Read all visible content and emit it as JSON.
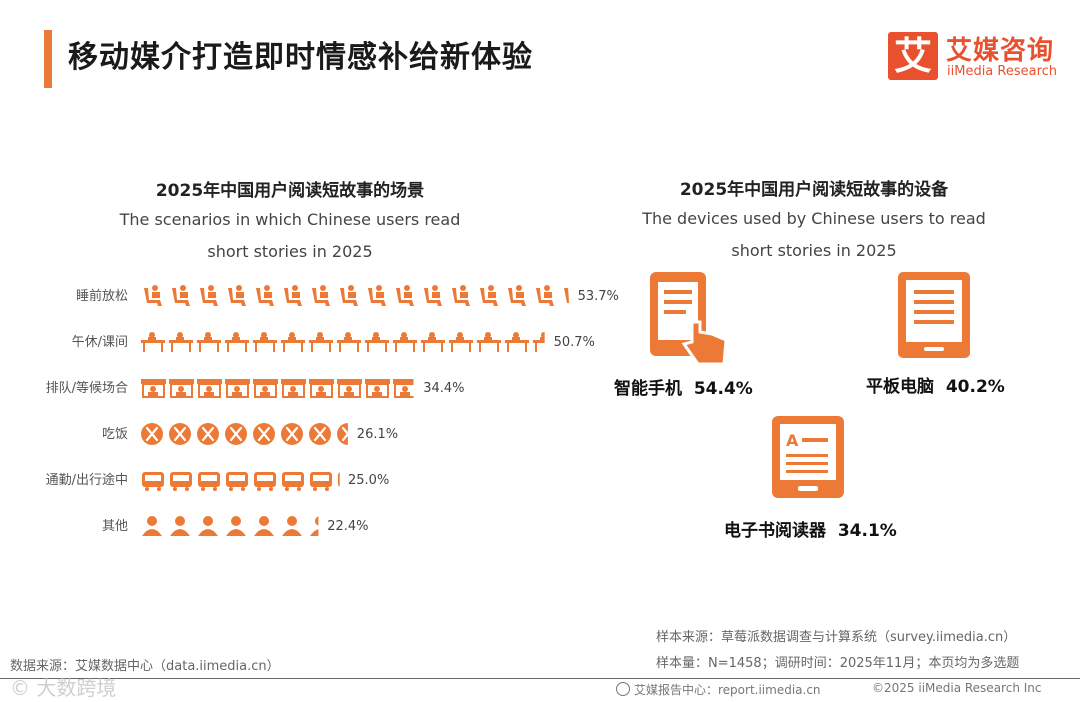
{
  "header": {
    "title": "移动媒介打造即时情感补给新体验",
    "logo_mark": "艾",
    "logo_cn": "艾媒咨询",
    "logo_en": "iiMedia Research"
  },
  "chart_data": [
    {
      "type": "bar",
      "title": "2025年中国用户阅读短故事的场景",
      "subtitle_line1": "The scenarios in which Chinese users read",
      "subtitle_line2": "short stories in 2025",
      "categories": [
        "睡前放松",
        "午休/课间",
        "排队/等候场合",
        "吃饭",
        "通勤/出行途中",
        "其他"
      ],
      "values": [
        53.7,
        50.7,
        34.4,
        26.1,
        25.0,
        22.4
      ],
      "value_labels": [
        "53.7%",
        "50.7%",
        "34.4%",
        "26.1%",
        "25.0%",
        "22.4%"
      ],
      "icons": [
        "reading-chair-icon",
        "desk-icon",
        "shop-icon",
        "utensils-icon",
        "bus-icon",
        "person-icon"
      ],
      "unit": "%",
      "icon_value": 3.5,
      "color": "#ec7a36"
    },
    {
      "type": "table",
      "title": "2025年中国用户阅读短故事的设备",
      "subtitle_line1": "The devices used by Chinese users to read",
      "subtitle_line2": "short stories in 2025",
      "items": [
        {
          "name": "智能手机",
          "value": 54.4,
          "label": "54.4%",
          "icon": "smartphone-icon"
        },
        {
          "name": "平板电脑",
          "value": 40.2,
          "label": "40.2%",
          "icon": "tablet-icon"
        },
        {
          "name": "电子书阅读器",
          "value": 34.1,
          "label": "34.1%",
          "icon": "ereader-icon"
        }
      ],
      "color": "#ec7a36"
    }
  ],
  "footer": {
    "source_right": "样本来源：草莓派数据调查与计算系统（survey.iimedia.cn）",
    "sample_info": "样本量：N=1458；调研时间：2025年11月；本页均为多选题",
    "source_left": "数据来源：艾媒数据中心（data.iimedia.cn）",
    "report_center": "艾媒报告中心：report.iimedia.cn",
    "copyright": "©2025  iiMedia Research  Inc",
    "watermark": "© 大数跨境"
  }
}
